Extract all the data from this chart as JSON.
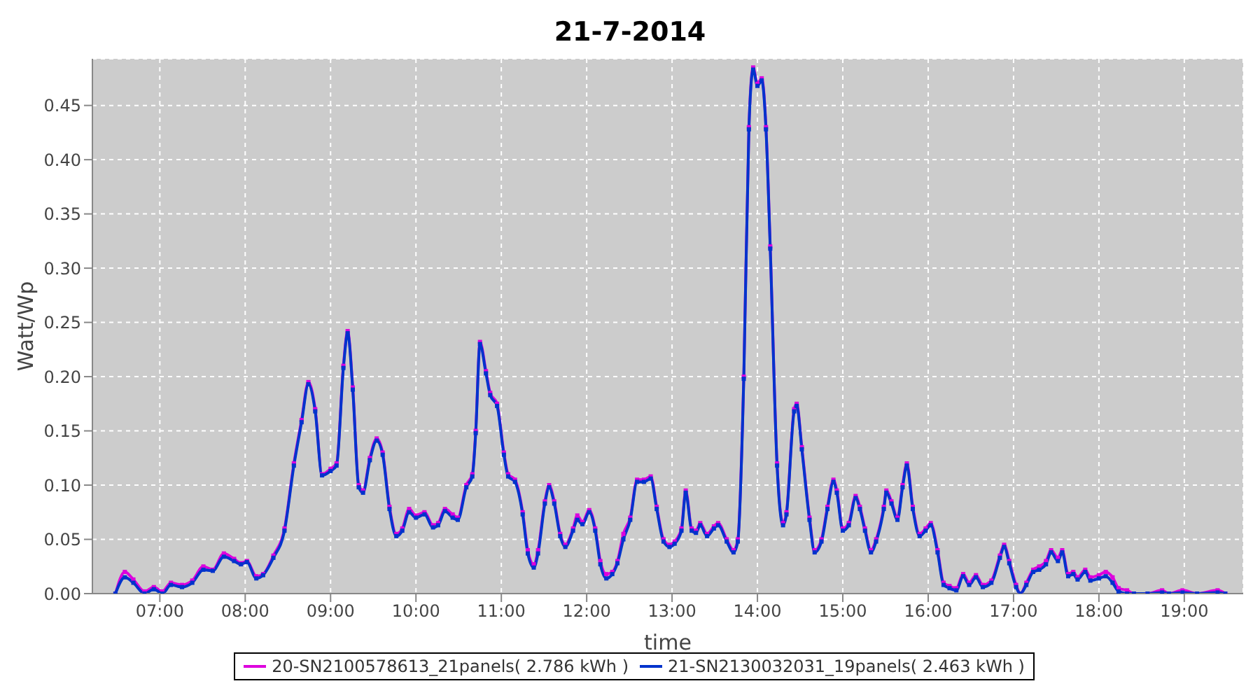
{
  "chart_data": {
    "type": "line",
    "title": "21-7-2014",
    "xlabel": "time",
    "ylabel": "Watt/Wp",
    "x": [
      6.48,
      6.59,
      6.69,
      6.82,
      6.93,
      7.03,
      7.13,
      7.26,
      7.38,
      7.51,
      7.62,
      7.75,
      7.87,
      7.95,
      8.02,
      8.13,
      8.21,
      8.33,
      8.46,
      8.57,
      8.66,
      8.74,
      8.82,
      8.9,
      9.0,
      9.07,
      9.15,
      9.2,
      9.26,
      9.33,
      9.38,
      9.46,
      9.54,
      9.61,
      9.69,
      9.77,
      9.84,
      9.92,
      10.0,
      10.1,
      10.2,
      10.26,
      10.34,
      10.43,
      10.49,
      10.59,
      10.66,
      10.7,
      10.75,
      10.82,
      10.87,
      10.95,
      11.03,
      11.08,
      11.16,
      11.25,
      11.31,
      11.38,
      11.43,
      11.51,
      11.56,
      11.62,
      11.69,
      11.75,
      11.84,
      11.89,
      11.95,
      12.03,
      12.1,
      12.16,
      12.23,
      12.3,
      12.36,
      12.43,
      12.51,
      12.59,
      12.67,
      12.75,
      12.82,
      12.9,
      12.97,
      13.03,
      13.11,
      13.16,
      13.23,
      13.28,
      13.33,
      13.41,
      13.49,
      13.54,
      13.64,
      13.72,
      13.77,
      13.84,
      13.9,
      13.95,
      14.0,
      14.05,
      14.1,
      14.15,
      14.23,
      14.3,
      14.34,
      14.43,
      14.46,
      14.52,
      14.61,
      14.67,
      14.75,
      14.82,
      14.89,
      14.93,
      15.0,
      15.07,
      15.15,
      15.2,
      15.26,
      15.33,
      15.39,
      15.48,
      15.51,
      15.57,
      15.64,
      15.7,
      15.75,
      15.82,
      15.9,
      15.97,
      16.03,
      16.11,
      16.18,
      16.25,
      16.33,
      16.41,
      16.48,
      16.56,
      16.64,
      16.74,
      16.84,
      16.89,
      16.95,
      17.03,
      17.08,
      17.15,
      17.23,
      17.3,
      17.38,
      17.44,
      17.52,
      17.57,
      17.64,
      17.7,
      17.75,
      17.84,
      17.9,
      18.0,
      18.08,
      18.16,
      18.23,
      18.33,
      18.41,
      18.57,
      18.74,
      18.82,
      18.98,
      19.15,
      19.39,
      19.48
    ],
    "series": [
      {
        "name": "20-SN2100578613_21panels( 2.786 kWh )",
        "color": "#dd00dd",
        "values": [
          0,
          0.02,
          0.013,
          0.002,
          0.006,
          0.002,
          0.01,
          0.008,
          0.012,
          0.025,
          0.022,
          0.037,
          0.032,
          0.028,
          0.03,
          0.016,
          0.018,
          0.035,
          0.06,
          0.12,
          0.16,
          0.195,
          0.17,
          0.11,
          0.115,
          0.12,
          0.21,
          0.242,
          0.19,
          0.1,
          0.095,
          0.125,
          0.143,
          0.13,
          0.08,
          0.055,
          0.06,
          0.078,
          0.072,
          0.075,
          0.063,
          0.065,
          0.078,
          0.073,
          0.07,
          0.1,
          0.11,
          0.15,
          0.232,
          0.205,
          0.185,
          0.175,
          0.13,
          0.11,
          0.105,
          0.075,
          0.04,
          0.027,
          0.04,
          0.085,
          0.1,
          0.085,
          0.055,
          0.045,
          0.06,
          0.072,
          0.066,
          0.077,
          0.06,
          0.03,
          0.018,
          0.02,
          0.03,
          0.055,
          0.07,
          0.105,
          0.105,
          0.108,
          0.08,
          0.05,
          0.045,
          0.048,
          0.06,
          0.095,
          0.06,
          0.058,
          0.065,
          0.055,
          0.062,
          0.065,
          0.05,
          0.04,
          0.05,
          0.2,
          0.43,
          0.485,
          0.47,
          0.475,
          0.43,
          0.32,
          0.12,
          0.065,
          0.075,
          0.17,
          0.175,
          0.135,
          0.07,
          0.04,
          0.05,
          0.08,
          0.105,
          0.095,
          0.06,
          0.065,
          0.09,
          0.08,
          0.06,
          0.04,
          0.05,
          0.08,
          0.095,
          0.085,
          0.07,
          0.1,
          0.12,
          0.08,
          0.055,
          0.06,
          0.065,
          0.04,
          0.01,
          0.007,
          0.005,
          0.018,
          0.01,
          0.017,
          0.008,
          0.012,
          0.035,
          0.045,
          0.03,
          0.008,
          0,
          0.01,
          0.022,
          0.025,
          0.03,
          0.04,
          0.033,
          0.04,
          0.018,
          0.02,
          0.015,
          0.022,
          0.015,
          0.017,
          0.02,
          0.015,
          0.005,
          0.003,
          0,
          0,
          0.003,
          0,
          0.003,
          0,
          0.003,
          0
        ]
      },
      {
        "name": "21-SN2130032031_19panels( 2.463 kWh )",
        "color": "#0033cc",
        "values": [
          0,
          0.015,
          0.01,
          0,
          0.004,
          0,
          0.008,
          0.006,
          0.01,
          0.022,
          0.021,
          0.034,
          0.03,
          0.027,
          0.029,
          0.014,
          0.017,
          0.033,
          0.058,
          0.118,
          0.158,
          0.193,
          0.168,
          0.109,
          0.113,
          0.118,
          0.208,
          0.24,
          0.188,
          0.098,
          0.093,
          0.123,
          0.141,
          0.128,
          0.078,
          0.053,
          0.058,
          0.075,
          0.07,
          0.073,
          0.061,
          0.063,
          0.076,
          0.07,
          0.068,
          0.098,
          0.108,
          0.148,
          0.23,
          0.203,
          0.183,
          0.173,
          0.128,
          0.108,
          0.103,
          0.073,
          0.037,
          0.024,
          0.037,
          0.083,
          0.098,
          0.083,
          0.053,
          0.043,
          0.058,
          0.068,
          0.064,
          0.075,
          0.058,
          0.027,
          0.014,
          0.018,
          0.028,
          0.05,
          0.068,
          0.103,
          0.103,
          0.106,
          0.078,
          0.048,
          0.043,
          0.046,
          0.058,
          0.093,
          0.058,
          0.056,
          0.063,
          0.053,
          0.06,
          0.063,
          0.048,
          0.038,
          0.048,
          0.198,
          0.428,
          0.483,
          0.468,
          0.473,
          0.428,
          0.318,
          0.118,
          0.063,
          0.073,
          0.168,
          0.173,
          0.133,
          0.068,
          0.038,
          0.048,
          0.078,
          0.103,
          0.093,
          0.058,
          0.063,
          0.088,
          0.078,
          0.058,
          0.038,
          0.048,
          0.078,
          0.093,
          0.083,
          0.068,
          0.098,
          0.118,
          0.078,
          0.053,
          0.058,
          0.063,
          0.038,
          0.008,
          0.005,
          0.003,
          0.016,
          0.008,
          0.015,
          0.006,
          0.01,
          0.033,
          0.043,
          0.028,
          0.006,
          0,
          0.008,
          0.02,
          0.022,
          0.027,
          0.038,
          0.03,
          0.038,
          0.016,
          0.018,
          0.013,
          0.02,
          0.012,
          0.014,
          0.016,
          0.01,
          0.002,
          0,
          0,
          0,
          0.001,
          0,
          0.001,
          0,
          0.001,
          0
        ]
      }
    ],
    "xlim": [
      6.21,
      19.69
    ],
    "xticks": [
      {
        "value": 7,
        "label": "07:00"
      },
      {
        "value": 8,
        "label": "08:00"
      },
      {
        "value": 9,
        "label": "09:00"
      },
      {
        "value": 10,
        "label": "10:00"
      },
      {
        "value": 11,
        "label": "11:00"
      },
      {
        "value": 12,
        "label": "12:00"
      },
      {
        "value": 13,
        "label": "13:00"
      },
      {
        "value": 14,
        "label": "14:00"
      },
      {
        "value": 15,
        "label": "15:00"
      },
      {
        "value": 16,
        "label": "16:00"
      },
      {
        "value": 17,
        "label": "17:00"
      },
      {
        "value": 18,
        "label": "18:00"
      },
      {
        "value": 19,
        "label": "19:00"
      }
    ],
    "ylim": [
      0,
      0.493
    ],
    "yticks": [
      {
        "value": 0,
        "label": "0.00"
      },
      {
        "value": 0.05,
        "label": "0.05"
      },
      {
        "value": 0.1,
        "label": "0.10"
      },
      {
        "value": 0.15,
        "label": "0.15"
      },
      {
        "value": 0.2,
        "label": "0.20"
      },
      {
        "value": 0.25,
        "label": "0.25"
      },
      {
        "value": 0.3,
        "label": "0.30"
      },
      {
        "value": 0.35,
        "label": "0.35"
      },
      {
        "value": 0.4,
        "label": "0.40"
      },
      {
        "value": 0.45,
        "label": "0.45"
      }
    ],
    "grid": true,
    "legend": "bottom",
    "marker": "square",
    "line_style": "solid"
  }
}
